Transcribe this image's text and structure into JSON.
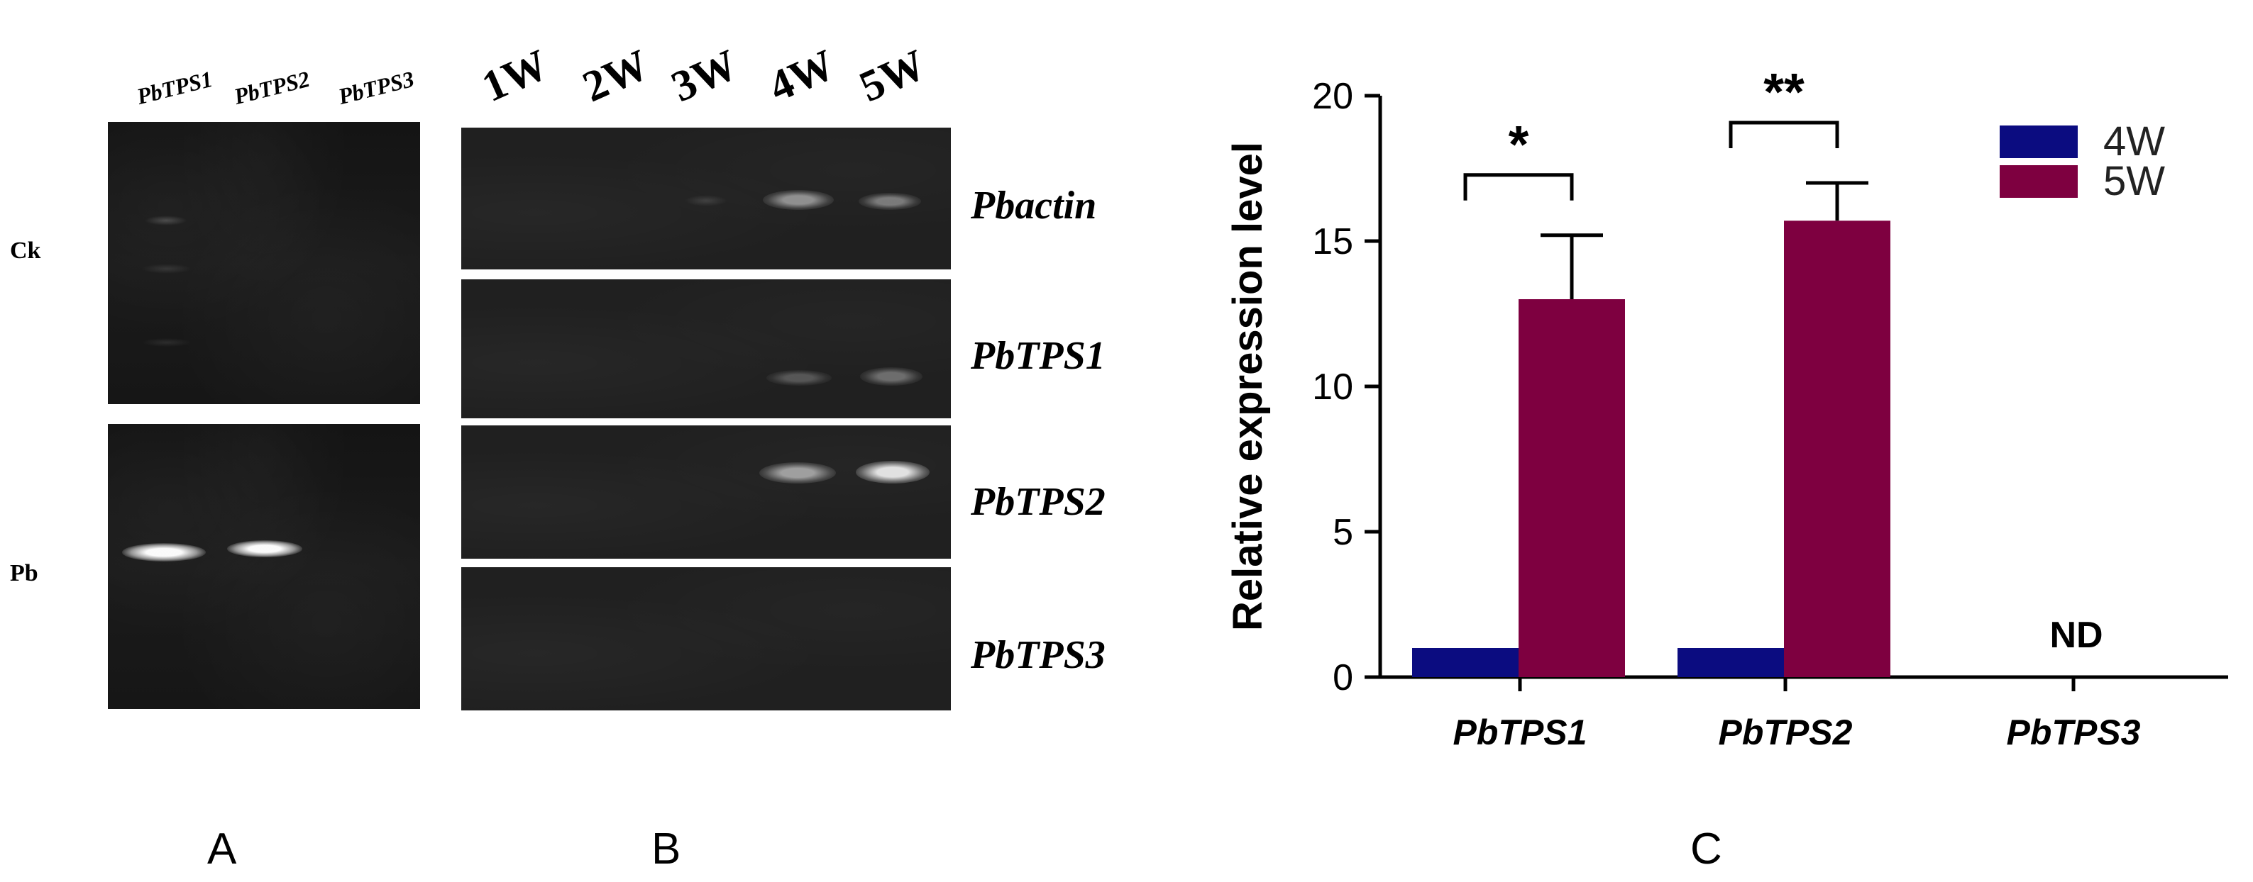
{
  "panel_a": {
    "letter": "A",
    "lanes": [
      "PbTPS1",
      "PbTPS2",
      "PbTPS3"
    ],
    "rows": [
      "Ck",
      "Pb"
    ]
  },
  "panel_b": {
    "letter": "B",
    "lanes": [
      "1W",
      "2W",
      "3W",
      "4W",
      "5W"
    ],
    "genes": [
      "Pbactin",
      "PbTPS1",
      "PbTPS2",
      "PbTPS3"
    ]
  },
  "panel_c": {
    "letter": "C",
    "chart_data": {
      "type": "bar",
      "categories": [
        "PbTPS1",
        "PbTPS2",
        "PbTPS3"
      ],
      "series": [
        {
          "name": "4W",
          "values": [
            1,
            1,
            null
          ],
          "color": "#0b0c80"
        },
        {
          "name": "5W",
          "values": [
            13.0,
            15.7,
            null
          ],
          "color": "#7e0040"
        }
      ],
      "error_bars_5W": [
        2.2,
        1.3
      ],
      "ylabel": "Relative expression level",
      "ylim": [
        0,
        20
      ],
      "yticks": [
        0,
        5,
        10,
        15,
        20
      ],
      "significance": [
        "*",
        "**"
      ],
      "annotation": "ND",
      "legend_position": "top-right"
    }
  }
}
